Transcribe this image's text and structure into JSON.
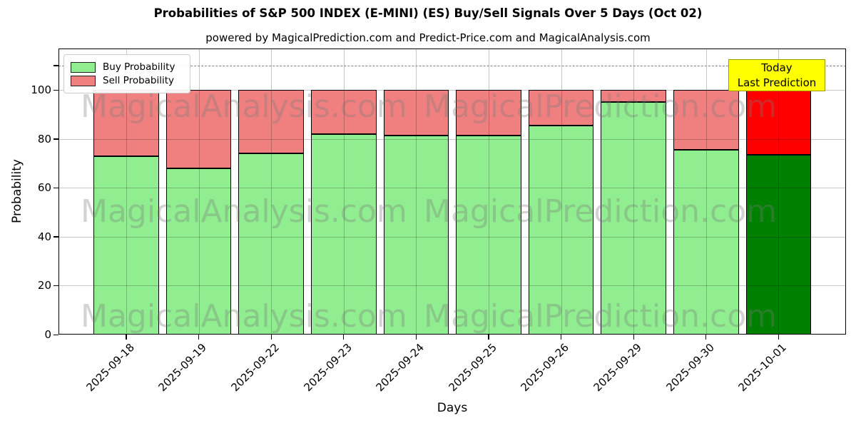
{
  "chart_data": {
    "type": "bar",
    "stacked": true,
    "title": "Probabilities of S&P 500 INDEX (E-MINI) (ES) Buy/Sell Signals Over 5 Days (Oct 02)",
    "subtitle": "powered by MagicalPrediction.com and Predict-Price.com and MagicalAnalysis.com",
    "xlabel": "Days",
    "ylabel": "Probability",
    "categories": [
      "2025-09-18",
      "2025-09-19",
      "2025-09-22",
      "2025-09-23",
      "2025-09-24",
      "2025-09-25",
      "2025-09-26",
      "2025-09-29",
      "2025-09-30",
      "2025-10-01"
    ],
    "series": [
      {
        "name": "Buy Probability",
        "color": "#90EE90",
        "last_bar_color": "#008000",
        "values": [
          73,
          68,
          74,
          82,
          81.5,
          81.5,
          85.5,
          95,
          75.5,
          73.5
        ]
      },
      {
        "name": "Sell Probability",
        "color": "#F08080",
        "last_bar_color": "#FF0000",
        "values": [
          27,
          32,
          26,
          18,
          18.5,
          18.5,
          14.5,
          5,
          24.5,
          26.5
        ]
      }
    ],
    "yticks": [
      0,
      20,
      40,
      60,
      80,
      100
    ],
    "ylim": [
      0,
      117
    ],
    "dashed_line_y": 110,
    "grid": true,
    "legend_position": "upper-left",
    "annotation": {
      "lines": [
        "Today",
        "Last Prediction"
      ],
      "bg_color": "#FFFF00"
    },
    "watermarks": [
      "MagicalAnalysis.com",
      "MagicalPrediction.com"
    ]
  }
}
